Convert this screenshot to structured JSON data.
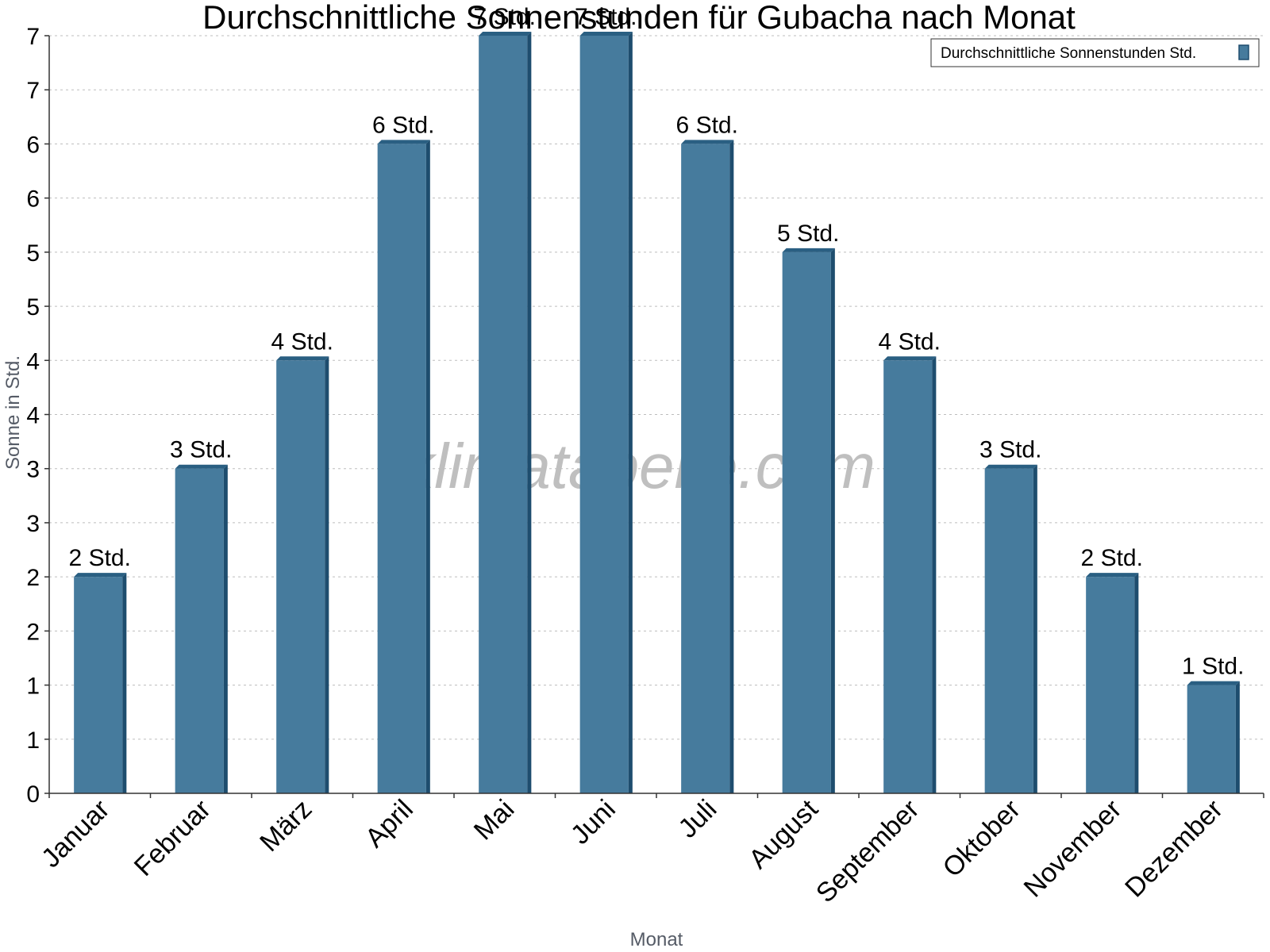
{
  "chart_data": {
    "type": "bar",
    "title": "Durchschnittliche Sonnenstunden für Gubacha nach Monat",
    "xlabel": "Monat",
    "ylabel": "Sonne in Std.",
    "categories": [
      "Januar",
      "Februar",
      "März",
      "April",
      "Mai",
      "Juni",
      "Juli",
      "August",
      "September",
      "Oktober",
      "November",
      "Dezember"
    ],
    "series": [
      {
        "name": "Durchschnittliche Sonnenstunden Std.",
        "values": [
          2,
          3,
          4,
          6,
          7,
          7,
          6,
          5,
          4,
          3,
          2,
          1
        ],
        "value_labels": [
          "2 Std.",
          "3 Std.",
          "4 Std.",
          "6 Std.",
          "7 Std.",
          "7 Std.",
          "6 Std.",
          "5 Std.",
          "4 Std.",
          "3 Std.",
          "2 Std.",
          "1 Std."
        ]
      }
    ],
    "ylim": [
      0,
      7
    ],
    "yticks": [
      0,
      0.5,
      1,
      1.5,
      2,
      2.5,
      3,
      3.5,
      4,
      4.5,
      5,
      5.5,
      6,
      6.5,
      7
    ],
    "ytick_labels": [
      "0",
      "1",
      "1",
      "2",
      "2",
      "3",
      "3",
      "4",
      "4",
      "5",
      "5",
      "6",
      "6",
      "7",
      "7"
    ],
    "grid": true,
    "legend_position": "top-right",
    "watermark": "klimatabelle.com",
    "colors": {
      "bar": "#467b9d",
      "bar_side": "#1e4d6e",
      "bar_top": "#2a5f82"
    }
  }
}
